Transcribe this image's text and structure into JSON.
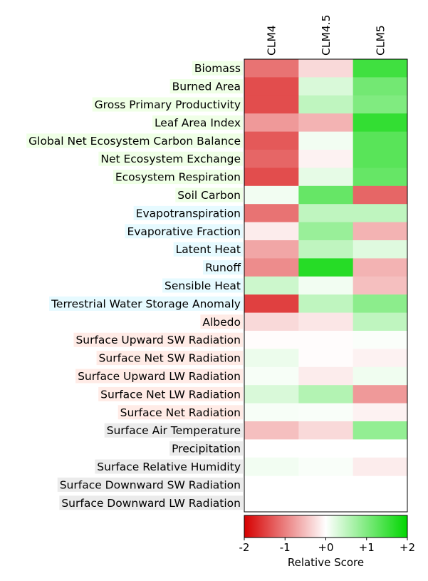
{
  "chart_data": {
    "type": "heatmap",
    "title": "",
    "columns": [
      "CLM4",
      "CLM4.5",
      "CLM5"
    ],
    "rows": [
      {
        "label": "Biomass",
        "group": "ecosystem",
        "values": [
          -1.1,
          -0.3,
          1.5
        ]
      },
      {
        "label": "Burned Area",
        "group": "ecosystem",
        "values": [
          -1.4,
          0.3,
          1.1
        ]
      },
      {
        "label": "Gross Primary Productivity",
        "group": "ecosystem",
        "values": [
          -1.4,
          0.5,
          1.0
        ]
      },
      {
        "label": "Leaf Area Index",
        "group": "ecosystem",
        "values": [
          -0.8,
          -0.6,
          1.6
        ]
      },
      {
        "label": "Global Net Ecosystem Carbon Balance",
        "group": "ecosystem",
        "values": [
          -1.3,
          0.1,
          1.3
        ]
      },
      {
        "label": "Net Ecosystem Exchange",
        "group": "ecosystem",
        "values": [
          -1.2,
          -0.1,
          1.3
        ]
      },
      {
        "label": "Ecosystem Respiration",
        "group": "ecosystem",
        "values": [
          -1.4,
          0.2,
          1.2
        ]
      },
      {
        "label": "Soil Carbon",
        "group": "ecosystem",
        "values": [
          0.1,
          1.2,
          -1.2
        ]
      },
      {
        "label": "Evapotranspiration",
        "group": "water",
        "values": [
          -1.1,
          0.5,
          0.5
        ]
      },
      {
        "label": "Evaporative Fraction",
        "group": "water",
        "values": [
          -0.15,
          0.8,
          -0.6
        ]
      },
      {
        "label": "Latent Heat",
        "group": "water",
        "values": [
          -0.7,
          0.5,
          0.25
        ]
      },
      {
        "label": "Runoff",
        "group": "water",
        "values": [
          -0.9,
          1.7,
          -0.6
        ]
      },
      {
        "label": "Sensible Heat",
        "group": "water",
        "values": [
          0.4,
          0.1,
          -0.5
        ]
      },
      {
        "label": "Terrestrial Water Storage Anomaly",
        "group": "water",
        "values": [
          -1.5,
          0.5,
          0.9
        ]
      },
      {
        "label": "Albedo",
        "group": "radiation",
        "values": [
          -0.3,
          -0.2,
          0.5
        ]
      },
      {
        "label": "Surface Upward SW Radiation",
        "group": "radiation",
        "values": [
          -0.02,
          -0.02,
          0.04
        ]
      },
      {
        "label": "Surface Net SW Radiation",
        "group": "radiation",
        "values": [
          0.15,
          -0.02,
          -0.1
        ]
      },
      {
        "label": "Surface Upward LW Radiation",
        "group": "radiation",
        "values": [
          0.06,
          -0.15,
          0.12
        ]
      },
      {
        "label": "Surface Net LW Radiation",
        "group": "radiation",
        "values": [
          0.3,
          0.6,
          -0.8
        ]
      },
      {
        "label": "Surface Net Radiation",
        "group": "radiation",
        "values": [
          0.06,
          0.05,
          -0.1
        ]
      },
      {
        "label": "Surface Air Temperature",
        "group": "forcing",
        "values": [
          -0.5,
          -0.3,
          0.85
        ]
      },
      {
        "label": "Precipitation",
        "group": "forcing",
        "values": [
          0.0,
          0.0,
          0.0
        ]
      },
      {
        "label": "Surface Relative Humidity",
        "group": "forcing",
        "values": [
          0.1,
          0.05,
          -0.15
        ]
      },
      {
        "label": "Surface Downward SW Radiation",
        "group": "forcing",
        "values": [
          null,
          null,
          null
        ]
      },
      {
        "label": "Surface Downward LW Radiation",
        "group": "forcing",
        "values": [
          null,
          null,
          null
        ]
      }
    ],
    "colorbar": {
      "label": "Relative Score",
      "min": -2,
      "max": 2,
      "ticks": [
        "-2",
        "-1",
        "+0",
        "+1",
        "+2"
      ],
      "tick_values": [
        -2,
        -1,
        0,
        1,
        2
      ],
      "colors": {
        "negative": "#d60000",
        "neutral": "#ffffff",
        "positive": "#00d600"
      }
    },
    "group_colors": {
      "ecosystem": "#efffe6",
      "water": "#e6faff",
      "radiation": "#ffebe6",
      "forcing": "#ebebeb"
    }
  }
}
